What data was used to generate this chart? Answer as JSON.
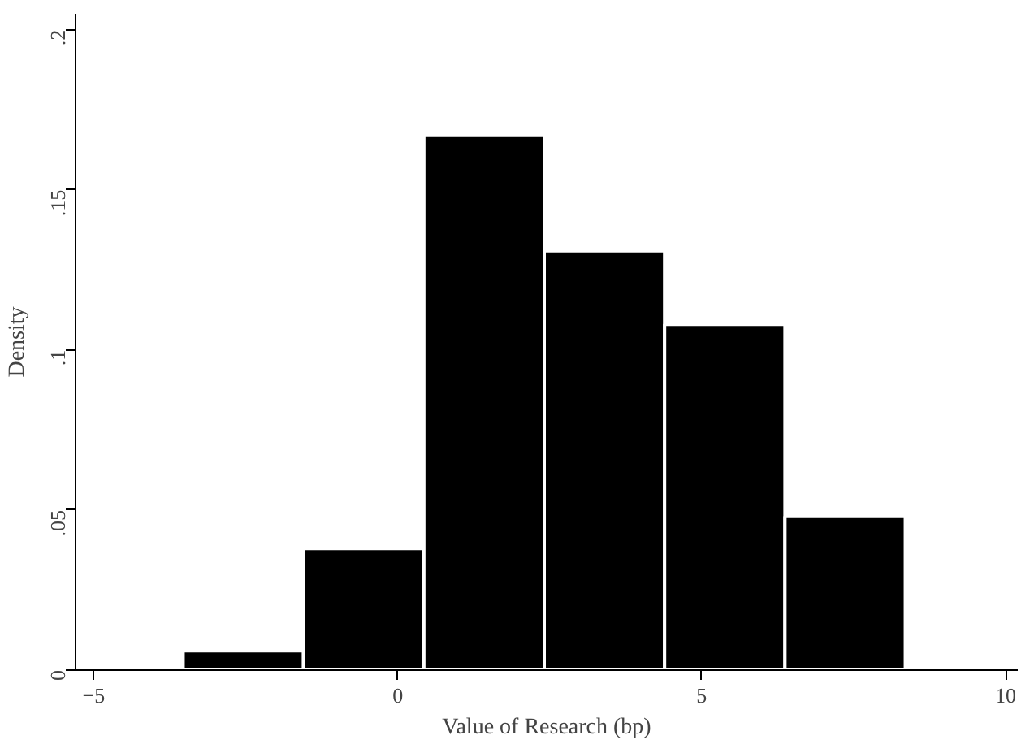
{
  "chart_data": {
    "type": "histogram",
    "xlabel": "Value of Research (bp)",
    "ylabel": "Density",
    "bins": [
      -3.53,
      -1.55,
      0.43,
      2.41,
      4.39,
      6.37,
      8.35
    ],
    "values": [
      0.006,
      0.038,
      0.167,
      0.131,
      0.108,
      0.048
    ],
    "color": "#000000",
    "xlim": [
      -5.3,
      10.2
    ],
    "ylim": [
      0,
      0.205
    ],
    "xticks": [
      -5,
      0,
      5,
      10
    ],
    "yticks": [
      0,
      {
        "value": 0.05,
        "label": ".05"
      },
      {
        "value": 0.1,
        "label": ".1"
      },
      {
        "value": 0.15,
        "label": ".15"
      },
      {
        "value": 0.2,
        "label": ".2"
      }
    ],
    "grid": false
  }
}
